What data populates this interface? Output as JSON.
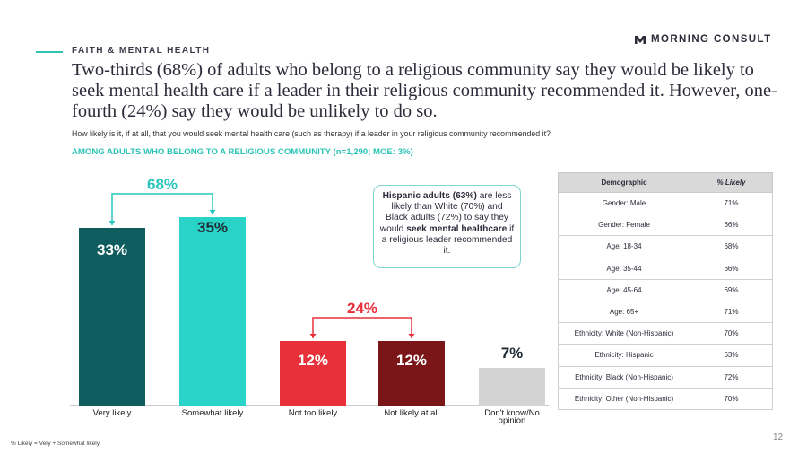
{
  "header": {
    "section_label": "FAITH & MENTAL HEALTH",
    "logo_text": "MORNING CONSULT",
    "logo_mark": "M",
    "headline": "Two-thirds (68%) of adults who belong to a religious community say they would be likely to seek mental health care if a leader in their religious community recommended it. However, one-fourth (24%) say they would be unlikely to do so.",
    "question": "How likely is it, if at all, that you would seek mental health care (such as therapy) if a leader in your religious community recommended it?",
    "base": "AMONG ADULTS WHO BELONG TO A RELIGIOUS COMMUNITY (n=1,290; MOE: 3%)"
  },
  "colors": {
    "accent": "#2ec4b6",
    "very_likely": "#0f5c5e",
    "somewhat_likely": "#29d3c8",
    "not_too_likely": "#e8303a",
    "not_likely_at_all": "#7a1618",
    "dont_know": "#d3d3d3",
    "bracket_positive": "#29c5bd",
    "bracket_negative": "#e8303a"
  },
  "callout": {
    "b1": "Hispanic adults (63%)",
    "t1": " are less likely than White (70%) and Black adults (72%) to say they would ",
    "b2": "seek mental healthcare",
    "t2": " if a religious leader recommended it."
  },
  "table": {
    "headers": [
      "Demographic",
      "% Likely"
    ],
    "rows": [
      [
        "Gender: Male",
        "71%"
      ],
      [
        "Gender: Female",
        "66%"
      ],
      [
        "Age: 18-34",
        "68%"
      ],
      [
        "Age: 35-44",
        "66%"
      ],
      [
        "Age: 45-64",
        "69%"
      ],
      [
        "Age: 65+",
        "71%"
      ],
      [
        "Ethnicity: White (Non-Hispanic)",
        "70%"
      ],
      [
        "Ethnicity: Hispanic",
        "63%"
      ],
      [
        "Ethnicity: Black (Non-Hispanic)",
        "72%"
      ],
      [
        "Ethnicity: Other (Non-Hispanic)",
        "70%"
      ]
    ]
  },
  "footer": {
    "footnote": "% Likely = Very + Somewhat likely",
    "page_number": "12"
  },
  "chart_data": {
    "type": "bar",
    "categories": [
      "Very likely",
      "Somewhat likely",
      "Not too likely",
      "Not likely at all",
      "Don't know/No opinion"
    ],
    "category_lines": [
      [
        "Very likely"
      ],
      [
        "Somewhat likely"
      ],
      [
        "Not too likely"
      ],
      [
        "Not likely at all"
      ],
      [
        "Don't know/No",
        "opinion"
      ]
    ],
    "values": [
      33,
      35,
      12,
      12,
      7
    ],
    "value_labels": [
      "33%",
      "35%",
      "12%",
      "12%",
      "7%"
    ],
    "groupings": [
      {
        "label": "68%",
        "from": 0,
        "to": 1,
        "value": 68
      },
      {
        "label": "24%",
        "from": 2,
        "to": 3,
        "value": 24
      }
    ],
    "title": "",
    "xlabel": "",
    "ylabel": "",
    "ylim": [
      0,
      35
    ],
    "grid": false
  }
}
